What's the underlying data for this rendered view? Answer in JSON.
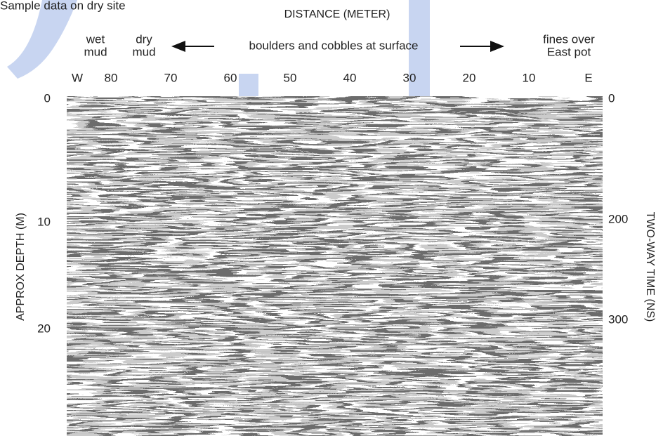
{
  "title": "Sample data on dry site",
  "x_axis": {
    "label": "DISTANCE (METER)",
    "ticks": [
      "W",
      "80",
      "70",
      "60",
      "50",
      "40",
      "30",
      "20",
      "10",
      "E"
    ]
  },
  "annotations": {
    "wet_mud": [
      "wet",
      "mud"
    ],
    "dry_mud": [
      "dry",
      "mud"
    ],
    "surface": "boulders and cobbles at surface",
    "fines": [
      "fines over",
      "East pot"
    ]
  },
  "left_axis": {
    "label": "APPROX DEPTH (M)",
    "ticks": [
      "0",
      "10",
      "20"
    ]
  },
  "right_axis": {
    "label": "TWO-WAY TIME (NS)",
    "ticks": [
      "0",
      "200",
      "300"
    ]
  }
}
